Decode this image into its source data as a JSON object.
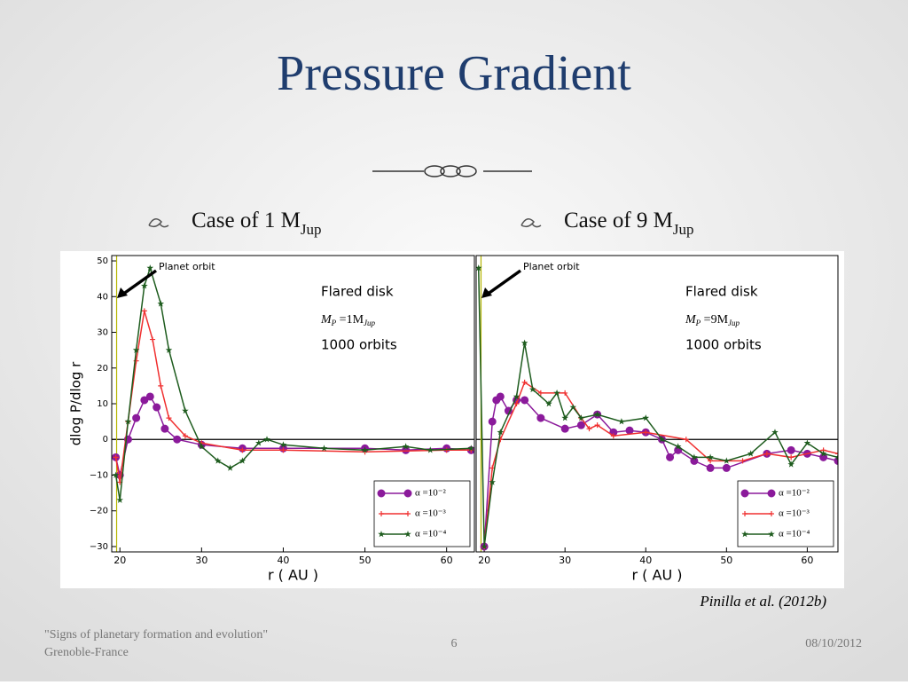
{
  "slide": {
    "title": "Pressure Gradient",
    "bullets": [
      {
        "text": "Case of 1 M",
        "sub": "Jup"
      },
      {
        "text": "Case of 9 M",
        "sub": "Jup"
      }
    ],
    "citation": "Pinilla et al. (2012b)",
    "footer": {
      "left_line1": "\"Signs of planetary formation and evolution\"",
      "left_line2": "Grenoble-France",
      "page": "6",
      "date": "08/10/2012"
    }
  },
  "chart_data": [
    {
      "type": "line",
      "y_label": "dlog P/dlog r",
      "x_label": "r ( AU )",
      "xlim": [
        19,
        63.4
      ],
      "ylim": [
        -31.5,
        51.5
      ],
      "xticks": [
        20,
        30,
        40,
        50,
        60
      ],
      "yticks": [
        50,
        40,
        30,
        20,
        10,
        0,
        {
          "value": -10,
          "label": "−10"
        },
        {
          "value": -20,
          "label": "−20"
        },
        {
          "value": -30,
          "label": "−30"
        }
      ],
      "planet_orbit": 19.6,
      "annotations": {
        "orbit": "Planet orbit",
        "disk": "Flared disk",
        "mass": {
          "m": "M",
          "p": "P",
          "eq": " =1M",
          "jup": "Jup"
        },
        "orbits": "1000 orbits"
      },
      "legend": "lower right",
      "series": [
        {
          "name": "α =10⁻²",
          "color": "#8b1a9b",
          "marker": "circle",
          "x": [
            19.5,
            20,
            21,
            22,
            23,
            23.7,
            24.5,
            25.5,
            27,
            30,
            35,
            40,
            50,
            55,
            60,
            63
          ],
          "values": [
            -5,
            -10,
            0,
            6,
            11,
            12,
            9,
            3,
            0,
            -1.5,
            -2.5,
            -2.5,
            -2.5,
            -3,
            -2.5,
            -3
          ]
        },
        {
          "name": "α =10⁻³",
          "color": "#f03030",
          "marker": "plus",
          "x": [
            19.5,
            20,
            21,
            22,
            23,
            24,
            25,
            26,
            28,
            30,
            35,
            40,
            50,
            60,
            63
          ],
          "values": [
            -5,
            -12,
            5,
            22,
            36,
            28,
            15,
            6,
            1,
            -1,
            -3,
            -3,
            -3.5,
            -3,
            -3
          ]
        },
        {
          "name": "α =10⁻⁴",
          "color": "#1e5c1e",
          "marker": "star",
          "x": [
            19.5,
            20,
            21,
            22,
            23,
            23.7,
            25,
            26,
            28,
            30,
            32,
            33.5,
            35,
            37,
            38,
            40,
            45,
            50,
            55,
            58,
            63
          ],
          "values": [
            -10,
            -17,
            5,
            25,
            43,
            48,
            38,
            25,
            8,
            -2,
            -6,
            -8,
            -6,
            -1,
            0,
            -1.5,
            -2.5,
            -3,
            -2,
            -3,
            -2.5
          ]
        }
      ]
    },
    {
      "type": "line",
      "x_label": "r ( AU )",
      "xlim": [
        19,
        63.8
      ],
      "ylim": [
        -31.5,
        51.5
      ],
      "xticks": [
        20,
        30,
        40,
        50,
        60
      ],
      "planet_orbit": 19.6,
      "annotations": {
        "orbit": "Planet orbit",
        "disk": "Flared disk",
        "mass": {
          "m": "M",
          "p": "P",
          "eq": " =9M",
          "jup": "Jup"
        },
        "orbits": "1000 orbits"
      },
      "legend": "lower right",
      "series": [
        {
          "name": "α =10⁻²",
          "color": "#8b1a9b",
          "marker": "circle",
          "x": [
            20,
            21,
            21.5,
            22,
            23,
            24,
            25,
            27,
            30,
            32,
            34,
            36,
            38,
            40,
            42,
            43,
            44,
            46,
            48,
            50,
            55,
            58,
            60,
            62,
            63.8
          ],
          "values": [
            -30,
            5,
            11,
            12,
            8,
            11,
            11,
            6,
            3,
            4,
            7,
            2,
            2.5,
            2,
            0,
            -5,
            -3,
            -6,
            -8,
            -8,
            -4,
            -3,
            -4,
            -5,
            -6
          ]
        },
        {
          "name": "α =10⁻³",
          "color": "#f03030",
          "marker": "plus",
          "x": [
            20,
            21,
            22,
            24,
            25,
            27,
            30,
            32,
            33,
            34,
            36,
            40,
            45,
            48,
            52,
            55,
            58,
            62,
            63.8
          ],
          "values": [
            -30,
            -8,
            0,
            10,
            16,
            13,
            13,
            6,
            3,
            4,
            1,
            2,
            0,
            -6,
            -6,
            -4,
            -5,
            -3,
            -4
          ]
        },
        {
          "name": "α =10⁻⁴",
          "color": "#1e5c1e",
          "marker": "star",
          "x": [
            19.3,
            20,
            21,
            22,
            24,
            25,
            26,
            28,
            29,
            30,
            31,
            32,
            34,
            37,
            40,
            42,
            44,
            46,
            48,
            50,
            53,
            56,
            58,
            60,
            62,
            63.8
          ],
          "values": [
            48,
            -30,
            -12,
            2,
            12,
            27,
            14,
            10,
            13,
            6,
            9,
            6,
            7,
            5,
            6,
            0,
            -2,
            -5,
            -5,
            -6,
            -4,
            2,
            -7,
            -1,
            -4,
            -5
          ]
        }
      ]
    }
  ]
}
